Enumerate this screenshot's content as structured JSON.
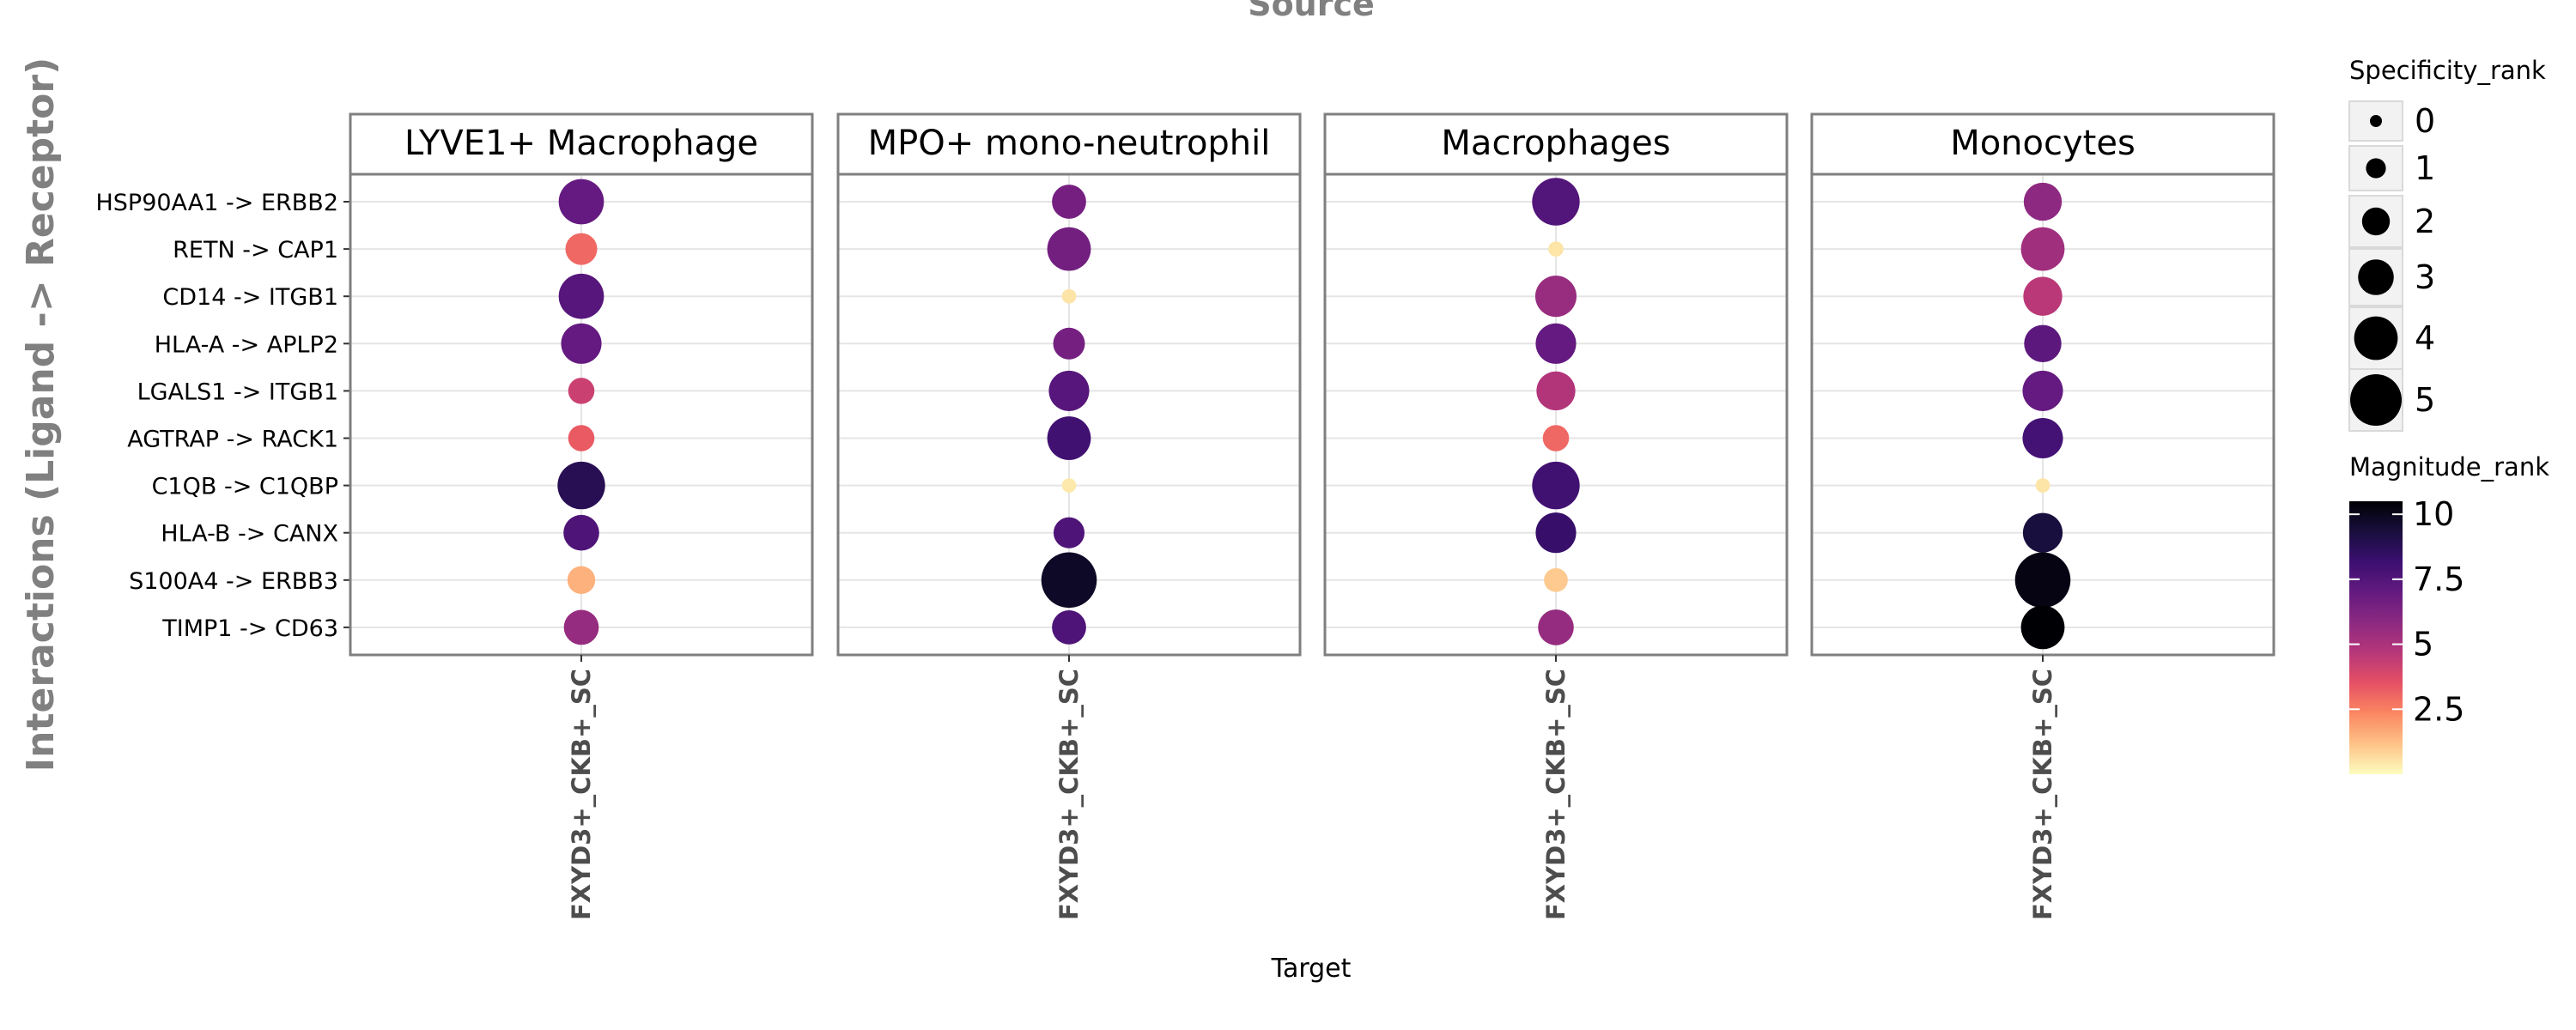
{
  "chart_data": {
    "type": "scatter",
    "title": "Source",
    "xlabel": "Target",
    "ylabel": "Interactions (Ligand -> Receptor)",
    "x_tick": "FXYD3+_CKB+_SC",
    "grid": true,
    "panels": [
      "LYVE1+ Macrophage",
      "MPO+ mono-neutrophil",
      "Macrophages",
      "Monocytes"
    ],
    "interactions": [
      "HSP90AA1 -> ERBB2",
      "RETN -> CAP1",
      "CD14 -> ITGB1",
      "HLA-A -> APLP2",
      "LGALS1 -> ITGB1",
      "AGTRAP -> RACK1",
      "C1QB -> C1QBP",
      "HLA-B -> CANX",
      "S100A4 -> ERBB3",
      "TIMP1 -> CD63"
    ],
    "series": [
      {
        "panel": "LYVE1+ Macrophage",
        "specificity_rank": [
          4.2,
          2.5,
          4.2,
          3.6,
          1.8,
          1.8,
          4.5,
          3.0,
          2.0,
          2.9
        ],
        "magnitude_rank": [
          7.0,
          3.0,
          7.4,
          7.0,
          4.2,
          3.3,
          8.8,
          7.6,
          1.5,
          5.6
        ]
      },
      {
        "panel": "MPO+ mono-neutrophil",
        "specificity_rank": [
          2.8,
          4.0,
          0.3,
          2.5,
          3.6,
          4.0,
          0.3,
          2.4,
          5.5,
          2.8
        ],
        "magnitude_rank": [
          6.5,
          6.6,
          0.5,
          6.5,
          7.4,
          8.0,
          0.4,
          7.6,
          9.8,
          7.6
        ]
      },
      {
        "panel": "Macrophages",
        "specificity_rank": [
          4.5,
          0.4,
          3.7,
          3.6,
          3.4,
          1.8,
          4.5,
          3.6,
          1.5,
          3.0
        ],
        "magnitude_rank": [
          7.5,
          0.5,
          5.5,
          7.0,
          4.8,
          3.0,
          8.0,
          8.3,
          1.0,
          5.6
        ]
      },
      {
        "panel": "Monocytes",
        "specificity_rank": [
          3.3,
          4.0,
          3.4,
          3.2,
          3.6,
          3.6,
          0.3,
          3.5,
          5.5,
          4.0
        ],
        "magnitude_rank": [
          5.8,
          5.3,
          4.6,
          7.2,
          7.0,
          7.9,
          0.5,
          9.3,
          10.2,
          10.5
        ]
      }
    ],
    "legends": {
      "size": {
        "title": "Specificity_rank",
        "levels": [
          0,
          1,
          2,
          3,
          4,
          5
        ],
        "labels": [
          "0",
          "1",
          "2",
          "3",
          "4",
          "5"
        ]
      },
      "color": {
        "title": "Magnitude_rank",
        "range": [
          0,
          10.5
        ],
        "ticks": [
          10,
          7.5,
          5,
          2.5
        ],
        "tick_labels": [
          "10",
          "7.5",
          "5",
          "2.5"
        ],
        "colormap": "magma",
        "stops": [
          "#fcfdbf",
          "#fec287",
          "#fb8761",
          "#e65164",
          "#b73779",
          "#8c2981",
          "#641a80",
          "#3b0f70",
          "#180f3d",
          "#000004"
        ]
      }
    }
  }
}
